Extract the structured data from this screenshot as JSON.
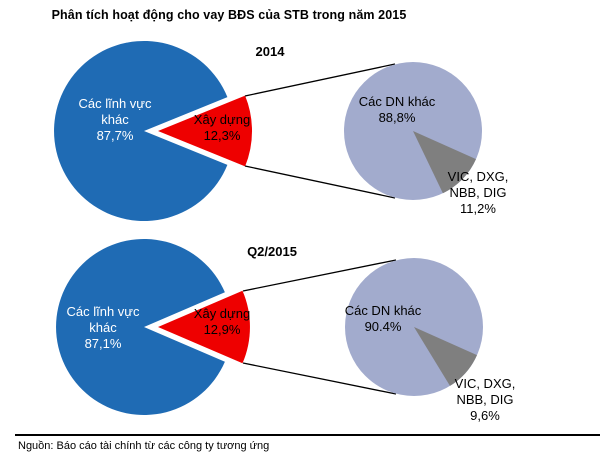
{
  "title": "Phân tích hoạt động cho vay BĐS của STB trong năm 2015",
  "source_note": "Nguồn: Báo cáo tài chính từ các công ty tương ứng",
  "colors": {
    "other_sectors_blue": "#1F6BB4",
    "construction_red": "#EE0000",
    "other_companies_periwinkle": "#A2ABCD",
    "vic_group_gray": "#7F7F7F",
    "text_on_blue": "#FFFFFF",
    "text_default": "#000000"
  },
  "chart_data": [
    {
      "type": "pie",
      "period": "2014",
      "role": "main",
      "legend_position": "inside",
      "slices": [
        {
          "label": "Các lĩnh vực khác",
          "value": 87.7,
          "display": "87,7%"
        },
        {
          "label": "Xây dựng",
          "value": 12.3,
          "display": "12,3%",
          "exploded": true
        }
      ]
    },
    {
      "type": "pie",
      "period": "2014",
      "role": "detail",
      "legend_position": "inside",
      "slices": [
        {
          "label": "Các DN khác",
          "value": 88.8,
          "display": "88,8%"
        },
        {
          "label": "VIC, DXG, NBB, DIG",
          "value": 11.2,
          "display": "11,2%"
        }
      ]
    },
    {
      "type": "pie",
      "period": "Q2/2015",
      "role": "main",
      "legend_position": "inside",
      "slices": [
        {
          "label": "Các lĩnh vực khác",
          "value": 87.1,
          "display": "87,1%"
        },
        {
          "label": "Xây dựng",
          "value": 12.9,
          "display": "12,9%",
          "exploded": true
        }
      ]
    },
    {
      "type": "pie",
      "period": "Q2/2015",
      "role": "detail",
      "legend_position": "inside",
      "slices": [
        {
          "label": "Các DN khác",
          "value": 90.4,
          "display": "90.4%"
        },
        {
          "label": "VIC, DXG, NBB, DIG",
          "value": 9.6,
          "display": "9,6%"
        }
      ]
    }
  ]
}
